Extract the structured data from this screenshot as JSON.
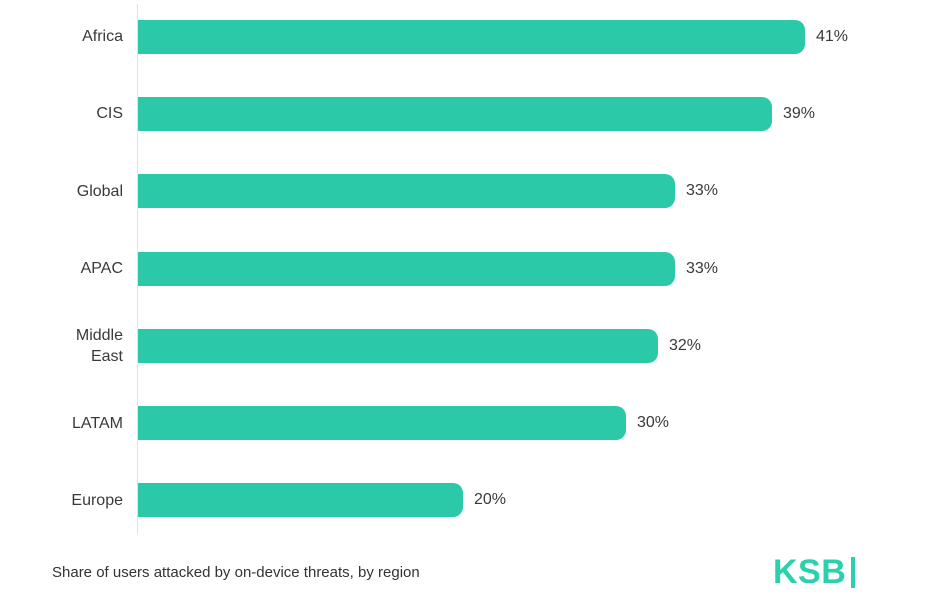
{
  "colors": {
    "background": "#ffffff",
    "bar": "#2cc9a8",
    "logo": "#2bd0ac",
    "label_text": "#3a3a3a",
    "value_text": "#3a3a3a",
    "caption_text": "#333333",
    "axis_line": "#e2e2e2"
  },
  "chart_data": {
    "type": "bar",
    "orientation": "horizontal",
    "categories": [
      "Africa",
      "CIS",
      "Global",
      "APAC",
      "Middle East",
      "LATAM",
      "Europe"
    ],
    "values": [
      41,
      39,
      33,
      33,
      32,
      30,
      20
    ],
    "value_labels": [
      "41%",
      "39%",
      "33%",
      "33%",
      "32%",
      "30%",
      "20%"
    ],
    "value_suffix": "%",
    "xlim": [
      0,
      45
    ],
    "grid": false,
    "legend": false,
    "caption": "Share of users attacked by on-device threats, by region"
  },
  "logo": {
    "text": "KSB"
  }
}
